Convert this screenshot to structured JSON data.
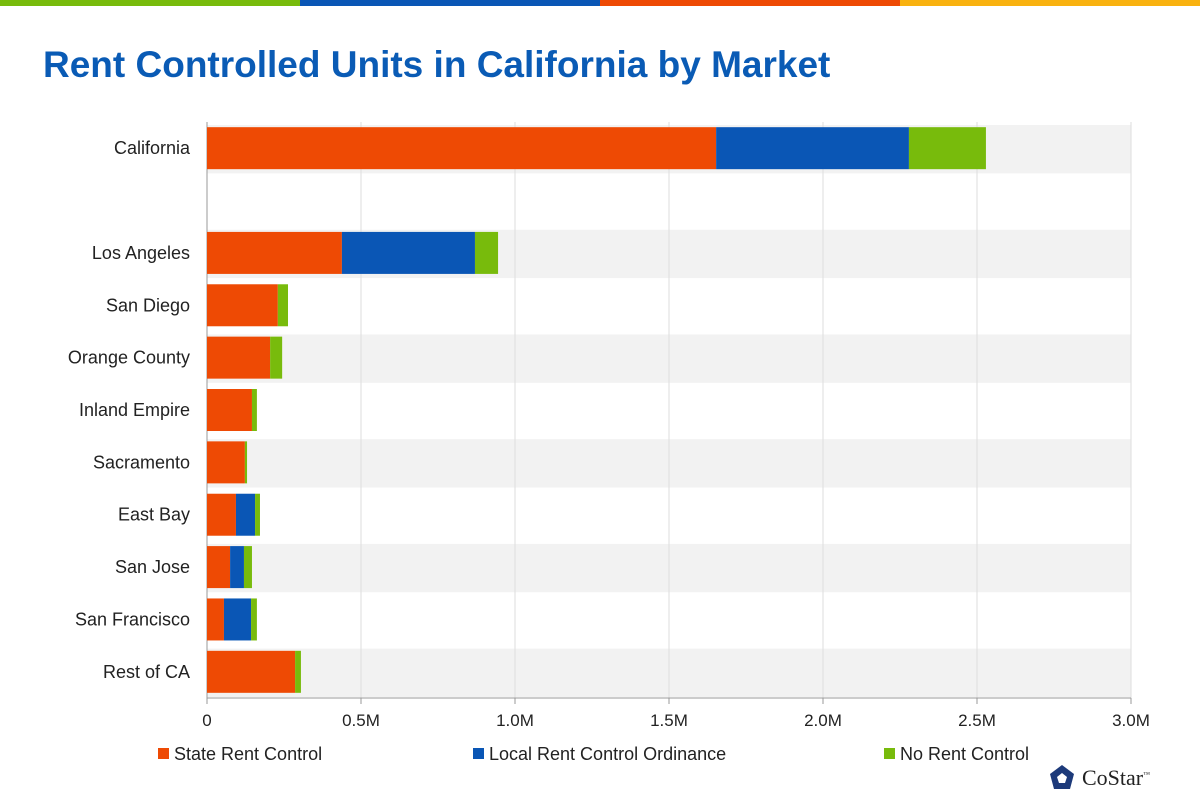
{
  "colors": {
    "state": "#ee4a04",
    "local": "#0a56b5",
    "none": "#78bb0c",
    "band": "#f2f2f2",
    "title": "#0a5bb5",
    "topbar": [
      "#78bb0c",
      "#0a56b5",
      "#ee4a04",
      "#f9b20f"
    ]
  },
  "chart_data": {
    "type": "bar",
    "orientation": "horizontal",
    "stacked": true,
    "title": "Rent Controlled Units in California by Market",
    "categories": [
      "California",
      "",
      "Los Angeles",
      "San Diego",
      "Orange County",
      "Inland Empire",
      "Sacramento",
      "East Bay",
      "San Jose",
      "San Francisco",
      "Rest of CA"
    ],
    "series": [
      {
        "name": "State Rent Control",
        "values": [
          1653000,
          null,
          438000,
          230000,
          205000,
          146000,
          123000,
          94000,
          75000,
          55000,
          286000
        ]
      },
      {
        "name": "Local Rent Control Ordinance",
        "values": [
          626000,
          null,
          432000,
          0,
          0,
          0,
          0,
          62000,
          45000,
          88000,
          0
        ]
      },
      {
        "name": "No Rent Control",
        "values": [
          250000,
          null,
          75000,
          33000,
          39000,
          16000,
          7000,
          16000,
          26000,
          19000,
          19000
        ]
      }
    ],
    "xlim": [
      0,
      3000000
    ],
    "xticks": [
      0,
      500000,
      1000000,
      1500000,
      2000000,
      2500000,
      3000000
    ],
    "xtick_labels": [
      "0",
      "0.5M",
      "1.0M",
      "1.5M",
      "2.0M",
      "2.5M",
      "3.0M"
    ],
    "grid": true,
    "legend_position": "bottom"
  },
  "logo": {
    "text": "CoStar",
    "tm": "™"
  }
}
